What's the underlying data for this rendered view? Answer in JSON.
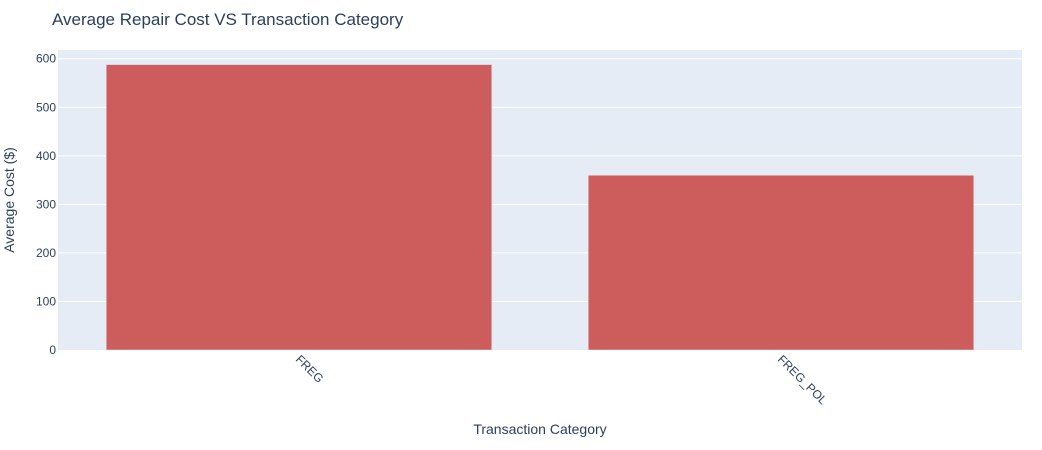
{
  "chart_data": {
    "type": "bar",
    "title": "Average Repair Cost VS Transaction Category",
    "xlabel": "Transaction Category",
    "ylabel": "Average Cost ($)",
    "categories": [
      "FREG",
      "FREG_POL"
    ],
    "values": [
      588,
      360
    ],
    "ylim": [
      0,
      618
    ],
    "yticks": [
      0,
      100,
      200,
      300,
      400,
      500,
      600
    ],
    "grid": true,
    "colors": {
      "bar": "#cd5c5c",
      "plot_bg": "#e5ecf6",
      "grid": "#ffffff",
      "text": "#2a3f5f"
    }
  }
}
